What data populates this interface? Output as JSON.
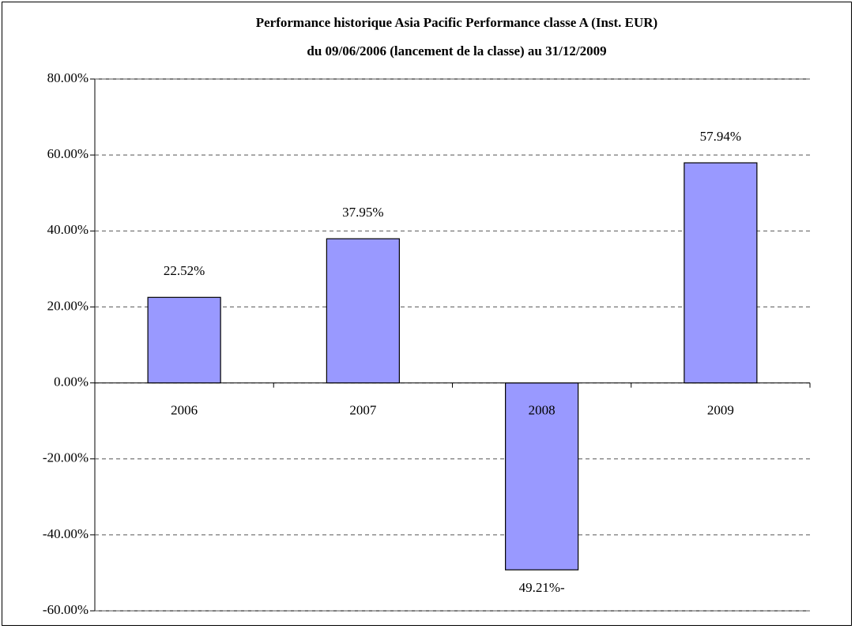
{
  "chart_data": {
    "type": "bar",
    "title": "Performance historique Asia Pacific Performance classe A (Inst. EUR)",
    "subtitle": "du 09/06/2006 (lancement de la classe) au 31/12/2009",
    "categories": [
      "2006",
      "2007",
      "2008",
      "2009"
    ],
    "values": [
      22.52,
      37.95,
      -49.21,
      57.94
    ],
    "value_labels": [
      "22.52%",
      "37.95%",
      "49.21%-",
      "57.94%"
    ],
    "color": "#9999ff",
    "ylim": [
      -60,
      80
    ],
    "yticks": [
      {
        "value": -60,
        "label": "-60.00%"
      },
      {
        "value": -40,
        "label": "-40.00%"
      },
      {
        "value": -20,
        "label": "-20.00%"
      },
      {
        "value": 0,
        "label": "0.00%"
      },
      {
        "value": 20,
        "label": "20.00%"
      },
      {
        "value": 40,
        "label": "40.00%"
      },
      {
        "value": 60,
        "label": "60.00%"
      },
      {
        "value": 80,
        "label": "80.00%"
      }
    ],
    "grid": true
  }
}
